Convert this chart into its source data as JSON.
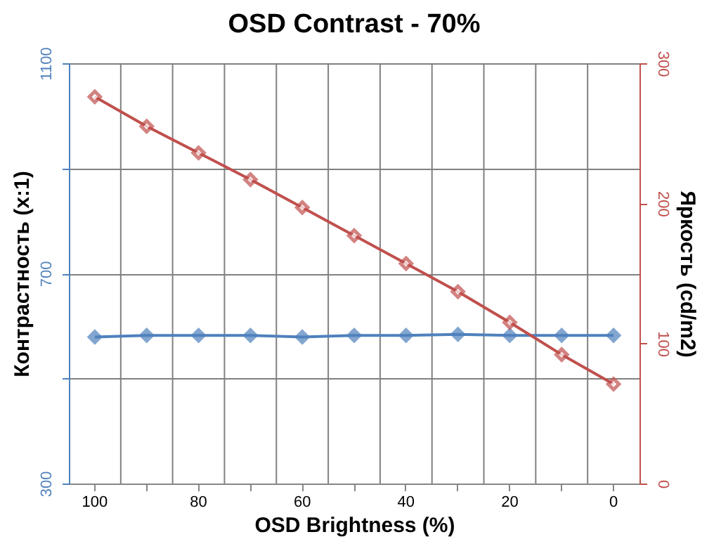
{
  "chart_data": {
    "type": "line",
    "title": "OSD Contrast - 70%",
    "xlabel": "OSD Brightness (%)",
    "ylabel": "Контрастность (x:1)",
    "y2label": "Яркость (cd/m2)",
    "categories": [
      "100",
      null,
      "80",
      null,
      "60",
      null,
      "40",
      null,
      "20",
      null,
      "0"
    ],
    "series": [
      {
        "name": null,
        "color": "#4f81bd",
        "axis": "y",
        "marker": "diamond",
        "values": [
          579,
          582,
          582,
          582,
          579,
          582,
          582,
          584,
          582,
          582,
          582
        ]
      },
      {
        "name": null,
        "color": "#c0504d",
        "axis": "y2",
        "marker": "diamond",
        "values": [
          276,
          255,
          236,
          217,
          197,
          177,
          157,
          137,
          115,
          92,
          71
        ]
      }
    ],
    "ylim": [
      300,
      1100
    ],
    "yticks": [
      300,
      {
        "value": 500,
        "label": null
      },
      700,
      {
        "value": 900,
        "label": null
      },
      1100
    ],
    "y2lim": [
      0,
      300
    ],
    "y2ticks": [
      0,
      100,
      200,
      300
    ],
    "grid": true
  }
}
